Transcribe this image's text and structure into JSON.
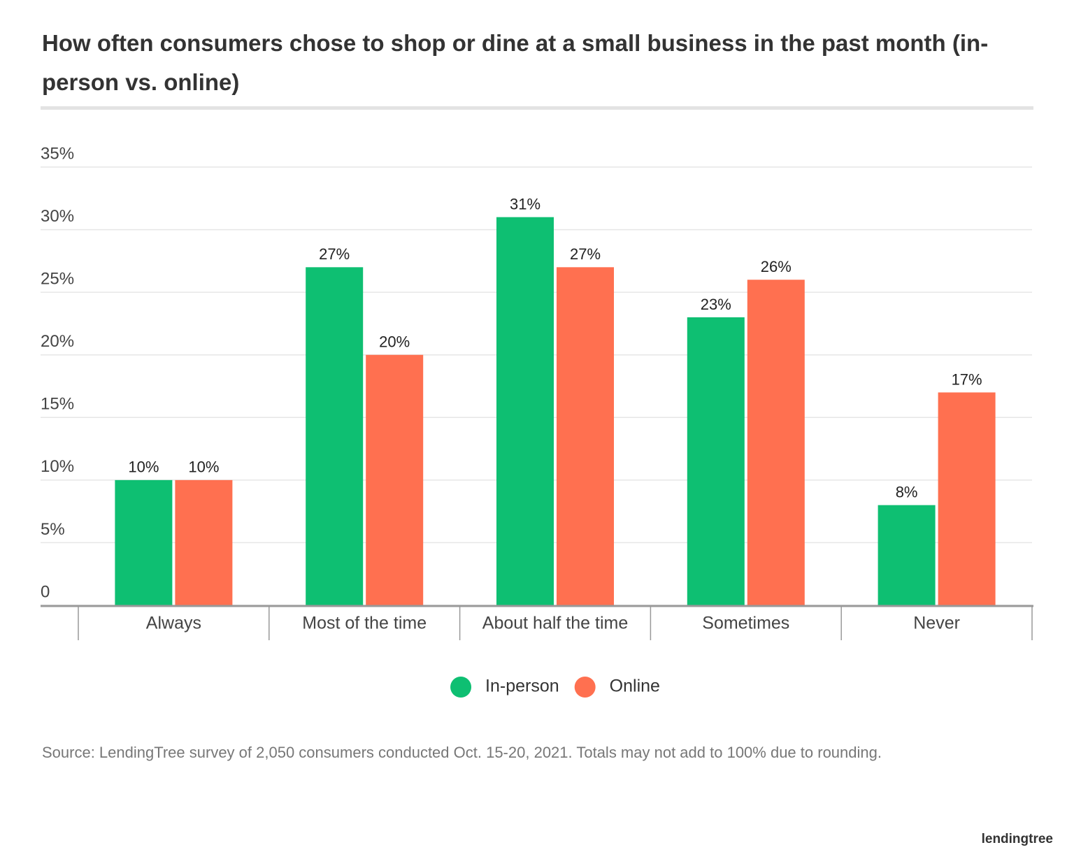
{
  "chart_data": {
    "type": "bar",
    "title": "How often consumers chose to shop or dine at a small business in the past month (in-person vs. online)",
    "categories": [
      "Always",
      "Most of the time",
      "About half the time",
      "Sometimes",
      "Never"
    ],
    "series": [
      {
        "name": "In-person",
        "color": "#0ebf72",
        "values": [
          10,
          27,
          31,
          23,
          8
        ],
        "value_labels": [
          "10%",
          "27%",
          "31%",
          "23%",
          "8%"
        ]
      },
      {
        "name": "Online",
        "color": "#ff7050",
        "values": [
          10,
          20,
          27,
          26,
          17
        ],
        "value_labels": [
          "10%",
          "20%",
          "27%",
          "26%",
          "17%"
        ]
      }
    ],
    "ylim": [
      0,
      35
    ],
    "yticks": [
      0,
      {
        "value": 5,
        "label": "5%"
      },
      {
        "value": 10,
        "label": "10%"
      },
      {
        "value": 15,
        "label": "15%"
      },
      {
        "value": 20,
        "label": "20%"
      },
      {
        "value": 25,
        "label": "25%"
      },
      {
        "value": 30,
        "label": "30%"
      },
      {
        "value": 35,
        "label": "35%"
      }
    ],
    "grid": true,
    "legend": "bottom",
    "source": "Source: LendingTree survey of 2,050 consumers conducted Oct. 15-20, 2021. Totals may not add to 100% due to rounding.",
    "brand": "lendingtree"
  }
}
